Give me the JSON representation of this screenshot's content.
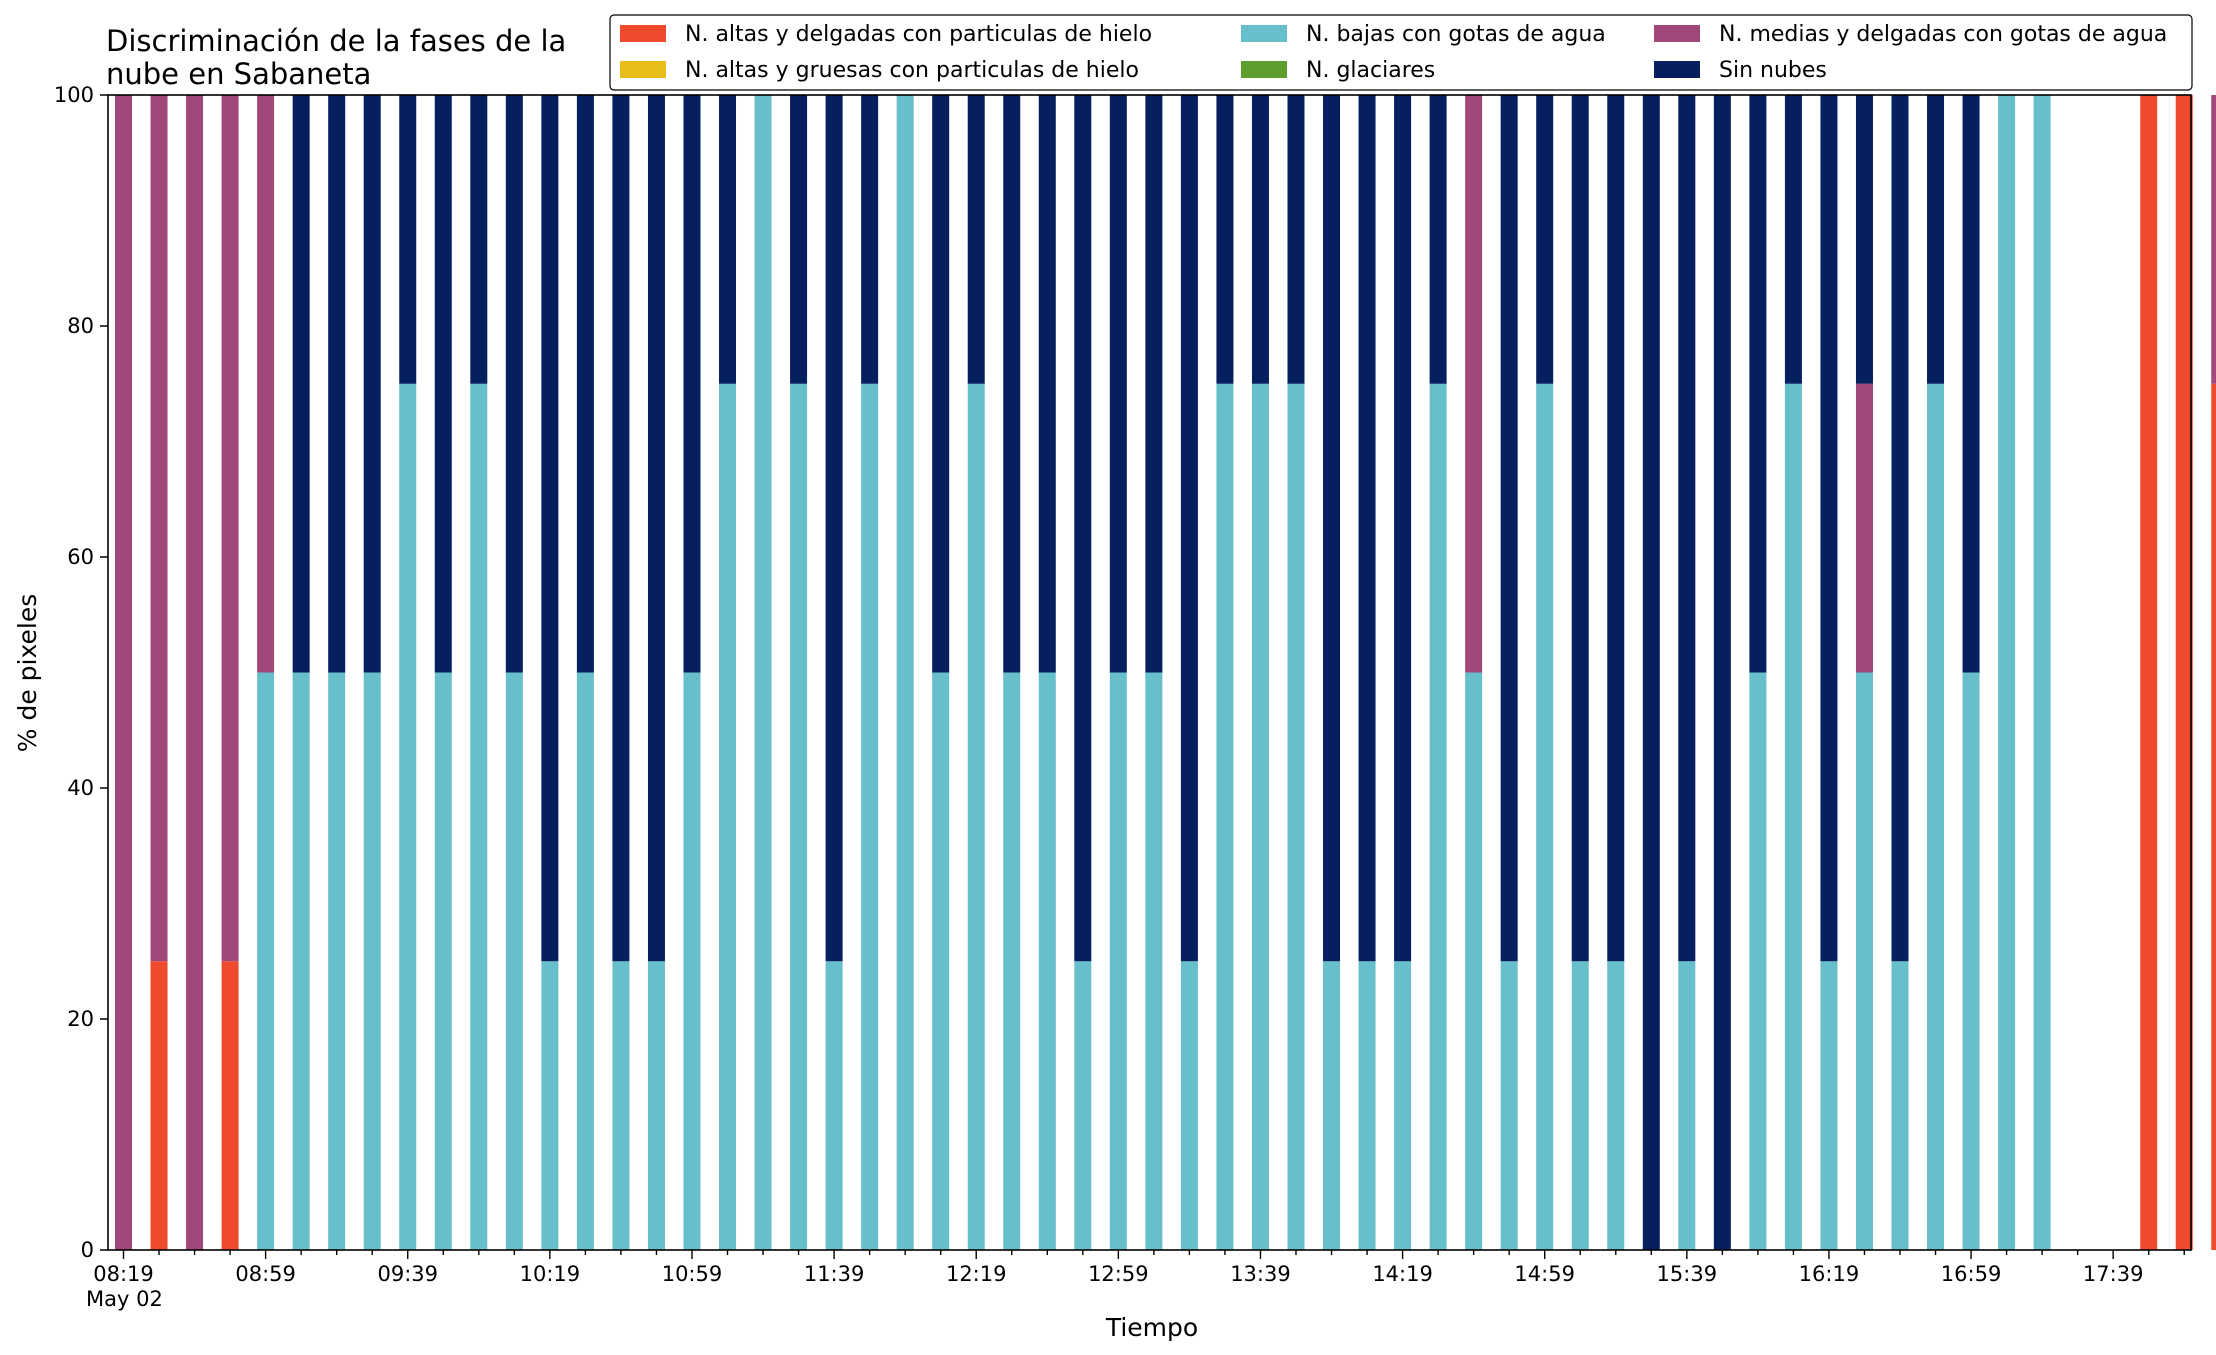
{
  "chart_data": {
    "type": "bar",
    "stacked": true,
    "title_line1": "Discriminación de la fases de la",
    "title_line2": "nube en Sabaneta",
    "xlabel": "Tiempo",
    "ylabel": "% de pixeles",
    "ylim": [
      0,
      100
    ],
    "yticks": [
      0,
      20,
      40,
      60,
      80,
      100
    ],
    "x_start": "08:19",
    "x_step_minutes": 10,
    "x_tick_labels": [
      "08:19",
      "08:59",
      "09:39",
      "10:19",
      "10:59",
      "11:39",
      "12:19",
      "12:59",
      "13:39",
      "14:19",
      "14:59",
      "15:39",
      "16:19",
      "16:59",
      "17:39"
    ],
    "x_tick_label_every": 4,
    "x_date_label": "May 02",
    "grid": false,
    "legend_position": "top-right",
    "legend_columns": 3,
    "stack_order": [
      "altas_delgadas",
      "altas_gruesas",
      "bajas",
      "glaciares",
      "medias",
      "sin_nubes"
    ],
    "series": [
      {
        "key": "altas_delgadas",
        "name": "N. altas y delgadas con particulas de hielo",
        "color": "#ee4a2c",
        "values": [
          0,
          25,
          0,
          25,
          0,
          0,
          0,
          0,
          0,
          0,
          0,
          0,
          0,
          0,
          0,
          0,
          0,
          0,
          0,
          0,
          0,
          0,
          0,
          0,
          0,
          0,
          0,
          0,
          0,
          0,
          0,
          0,
          0,
          0,
          0,
          0,
          0,
          0,
          0,
          0,
          0,
          0,
          0,
          0,
          0,
          0,
          0,
          0,
          0,
          0,
          0,
          0,
          0,
          0,
          0,
          0,
          0,
          100,
          100,
          75
        ]
      },
      {
        "key": "altas_gruesas",
        "name": "N. altas y gruesas con particulas de hielo",
        "color": "#e8bd1a",
        "values": [
          0,
          0,
          0,
          0,
          0,
          0,
          0,
          0,
          0,
          0,
          0,
          0,
          0,
          0,
          0,
          0,
          0,
          0,
          0,
          0,
          0,
          0,
          0,
          0,
          0,
          0,
          0,
          0,
          0,
          0,
          0,
          0,
          0,
          0,
          0,
          0,
          0,
          0,
          0,
          0,
          0,
          0,
          0,
          0,
          0,
          0,
          0,
          0,
          0,
          0,
          0,
          0,
          0,
          0,
          0,
          0,
          0,
          0,
          0,
          0
        ]
      },
      {
        "key": "bajas",
        "name": "N. bajas con gotas de agua",
        "color": "#66bfcb",
        "values": [
          0,
          0,
          0,
          0,
          50,
          50,
          50,
          50,
          75,
          50,
          75,
          50,
          25,
          50,
          25,
          25,
          50,
          75,
          100,
          75,
          25,
          75,
          100,
          50,
          75,
          50,
          50,
          25,
          50,
          50,
          25,
          75,
          75,
          75,
          25,
          25,
          25,
          75,
          50,
          25,
          75,
          25,
          25,
          0,
          25,
          0,
          50,
          75,
          25,
          50,
          25,
          75,
          50,
          100,
          100,
          0,
          0,
          0,
          0,
          0
        ]
      },
      {
        "key": "glaciares",
        "name": "N. glaciares",
        "color": "#5e9e2e",
        "values": [
          0,
          0,
          0,
          0,
          0,
          0,
          0,
          0,
          0,
          0,
          0,
          0,
          0,
          0,
          0,
          0,
          0,
          0,
          0,
          0,
          0,
          0,
          0,
          0,
          0,
          0,
          0,
          0,
          0,
          0,
          0,
          0,
          0,
          0,
          0,
          0,
          0,
          0,
          0,
          0,
          0,
          0,
          0,
          0,
          0,
          0,
          0,
          0,
          0,
          0,
          0,
          0,
          0,
          0,
          0,
          0,
          0,
          0,
          0,
          0
        ]
      },
      {
        "key": "medias",
        "name": "N. medias y delgadas con gotas de agua",
        "color": "#a2477a",
        "values": [
          100,
          75,
          100,
          75,
          50,
          0,
          0,
          0,
          0,
          0,
          0,
          0,
          0,
          0,
          0,
          0,
          0,
          0,
          0,
          0,
          0,
          0,
          0,
          0,
          0,
          0,
          0,
          0,
          0,
          0,
          0,
          0,
          0,
          0,
          0,
          0,
          0,
          0,
          50,
          0,
          0,
          0,
          0,
          0,
          0,
          0,
          0,
          0,
          0,
          25,
          0,
          0,
          0,
          0,
          0,
          0,
          0,
          0,
          0,
          25
        ]
      },
      {
        "key": "sin_nubes",
        "name": "Sin nubes",
        "color": "#061f5f",
        "values": [
          0,
          0,
          0,
          0,
          0,
          50,
          50,
          50,
          25,
          50,
          25,
          50,
          75,
          50,
          75,
          75,
          50,
          25,
          0,
          25,
          75,
          25,
          0,
          50,
          25,
          50,
          50,
          75,
          50,
          50,
          75,
          25,
          25,
          25,
          75,
          75,
          75,
          25,
          0,
          75,
          25,
          75,
          75,
          100,
          75,
          100,
          50,
          25,
          75,
          25,
          75,
          25,
          50,
          0,
          0,
          0,
          0,
          0,
          0,
          0
        ]
      }
    ]
  }
}
